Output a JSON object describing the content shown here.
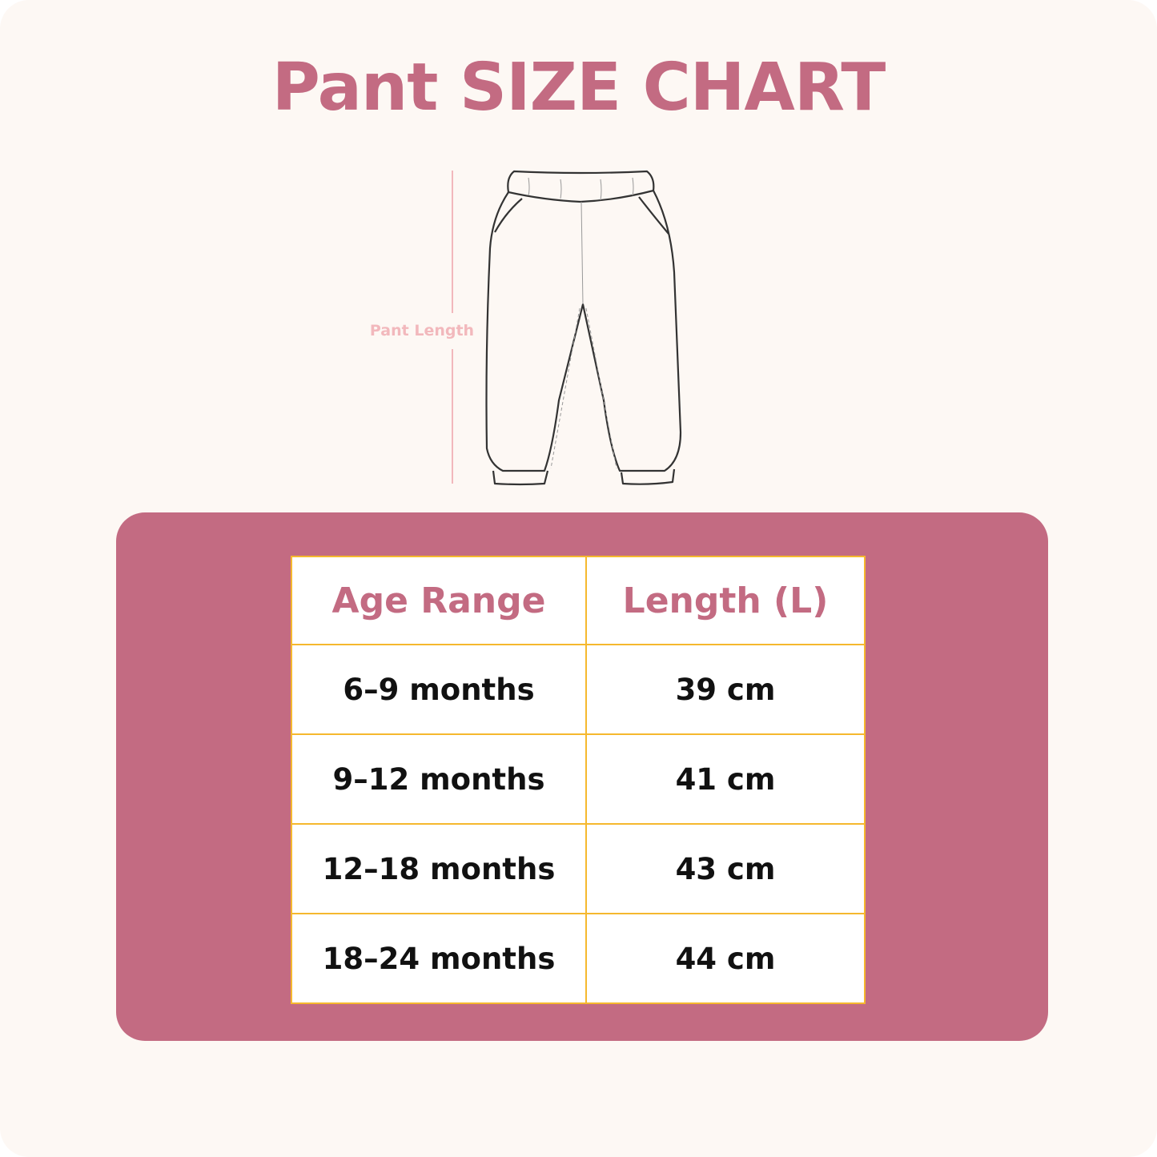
{
  "title": "Pant SIZE CHART",
  "measurement_label": "Pant Length",
  "colors": {
    "accent": "#c36b82",
    "background": "#fdf8f4",
    "table_border": "#f5b82e",
    "measure": "#f2b8bc"
  },
  "table": {
    "headers": [
      "Age Range",
      "Length (L)"
    ],
    "rows": [
      {
        "age": "6–9 months",
        "length": "39 cm"
      },
      {
        "age": "9–12 months",
        "length": "41 cm"
      },
      {
        "age": "12–18 months",
        "length": "43 cm"
      },
      {
        "age": "18–24 months",
        "length": "44 cm"
      }
    ]
  }
}
